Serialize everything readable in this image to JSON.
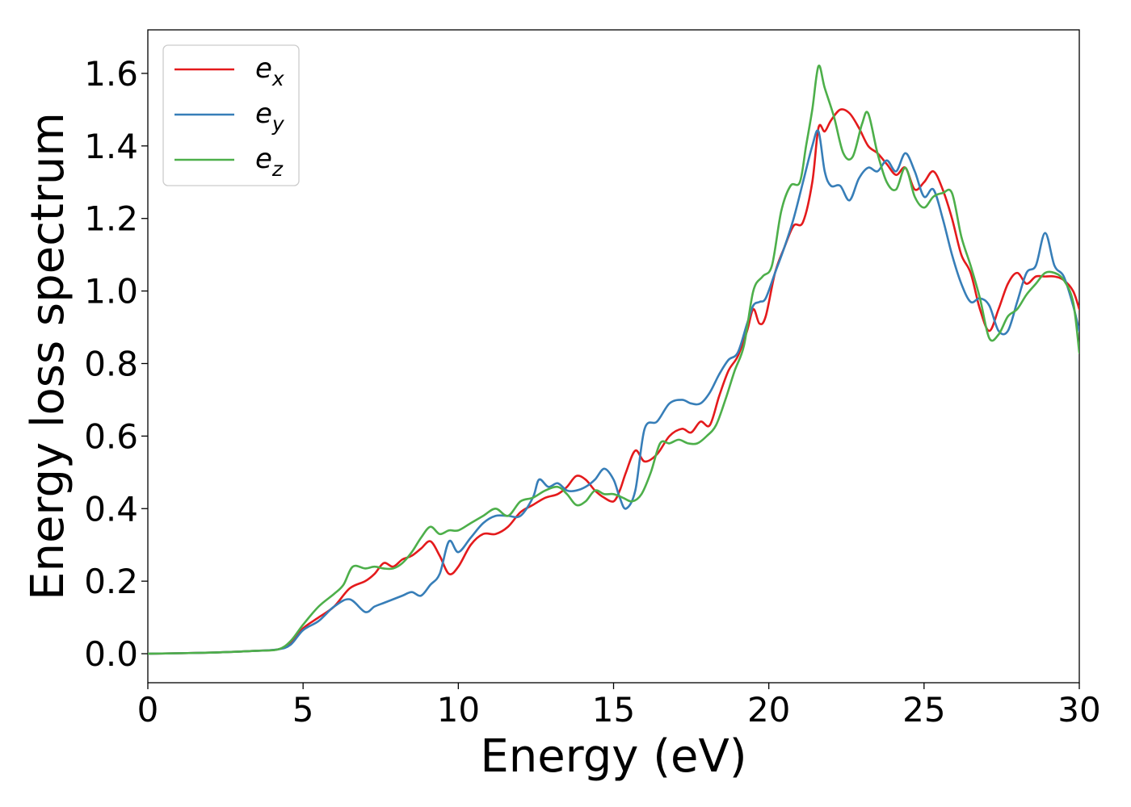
{
  "chart_data": {
    "type": "line",
    "xlabel": "Energy (eV)",
    "ylabel": "Energy loss spectrum",
    "xlim": [
      0,
      30
    ],
    "ylim": [
      -0.08,
      1.72
    ],
    "xticks": [
      0,
      5,
      10,
      15,
      20,
      25,
      30
    ],
    "yticks": [
      0.0,
      0.2,
      0.4,
      0.6,
      0.8,
      1.0,
      1.2,
      1.4,
      1.6
    ],
    "xtick_labels": [
      "0",
      "5",
      "10",
      "15",
      "20",
      "25",
      "30"
    ],
    "ytick_labels": [
      "0.0",
      "0.2",
      "0.4",
      "0.6",
      "0.8",
      "1.0",
      "1.2",
      "1.4",
      "1.6"
    ],
    "grid": false,
    "legend_position": "top-left",
    "series": [
      {
        "name": "e_x",
        "label_base": "e",
        "label_sub": "x",
        "color": "#e41a1c",
        "x": [
          0,
          2,
          3.5,
          4.2,
          4.6,
          5,
          5.5,
          6,
          6.5,
          7,
          7.3,
          7.6,
          7.9,
          8.2,
          8.5,
          8.8,
          9.1,
          9.4,
          9.7,
          10,
          10.4,
          10.8,
          11.2,
          11.6,
          12,
          12.4,
          12.8,
          13.2,
          13.5,
          13.8,
          14.1,
          14.4,
          14.7,
          15,
          15.2,
          15.4,
          15.7,
          16,
          16.4,
          16.8,
          17.2,
          17.5,
          17.8,
          18.1,
          18.4,
          18.7,
          19,
          19.3,
          19.5,
          19.7,
          19.9,
          20.2,
          20.5,
          20.8,
          21.1,
          21.4,
          21.6,
          21.8,
          22,
          22.3,
          22.6,
          22.9,
          23.2,
          23.5,
          23.8,
          24.1,
          24.4,
          24.7,
          25,
          25.3,
          25.6,
          25.9,
          26.2,
          26.5,
          26.8,
          27.1,
          27.4,
          27.7,
          28,
          28.3,
          28.6,
          28.9,
          29.2,
          29.5,
          29.8,
          30
        ],
        "y": [
          0.0,
          0.003,
          0.008,
          0.012,
          0.03,
          0.07,
          0.1,
          0.13,
          0.18,
          0.2,
          0.22,
          0.25,
          0.24,
          0.26,
          0.27,
          0.29,
          0.31,
          0.27,
          0.22,
          0.24,
          0.3,
          0.33,
          0.33,
          0.35,
          0.39,
          0.41,
          0.43,
          0.44,
          0.46,
          0.49,
          0.48,
          0.45,
          0.43,
          0.42,
          0.45,
          0.5,
          0.56,
          0.53,
          0.55,
          0.6,
          0.62,
          0.61,
          0.64,
          0.63,
          0.71,
          0.78,
          0.82,
          0.89,
          0.95,
          0.91,
          0.93,
          1.05,
          1.12,
          1.18,
          1.19,
          1.3,
          1.45,
          1.44,
          1.47,
          1.5,
          1.49,
          1.45,
          1.4,
          1.38,
          1.35,
          1.32,
          1.34,
          1.28,
          1.3,
          1.33,
          1.28,
          1.2,
          1.1,
          1.05,
          0.95,
          0.89,
          0.95,
          1.02,
          1.05,
          1.02,
          1.04,
          1.04,
          1.04,
          1.03,
          1.0,
          0.95
        ]
      },
      {
        "name": "e_y",
        "label_base": "e",
        "label_sub": "y",
        "color": "#377eb8",
        "x": [
          0,
          2,
          3.5,
          4.2,
          4.6,
          5,
          5.5,
          6,
          6.5,
          7,
          7.3,
          7.6,
          7.9,
          8.2,
          8.5,
          8.8,
          9.1,
          9.4,
          9.7,
          10,
          10.4,
          10.8,
          11.2,
          11.6,
          12,
          12.4,
          12.6,
          12.9,
          13.2,
          13.5,
          13.8,
          14.1,
          14.4,
          14.7,
          15,
          15.2,
          15.4,
          15.7,
          16,
          16.4,
          16.8,
          17.2,
          17.5,
          17.8,
          18.1,
          18.4,
          18.7,
          19,
          19.3,
          19.5,
          19.7,
          19.9,
          20.2,
          20.5,
          20.8,
          21.1,
          21.4,
          21.6,
          21.8,
          22,
          22.3,
          22.6,
          22.9,
          23.2,
          23.5,
          23.8,
          24.1,
          24.4,
          24.7,
          25,
          25.3,
          25.6,
          25.9,
          26.2,
          26.5,
          26.8,
          27.1,
          27.4,
          27.7,
          28,
          28.3,
          28.6,
          28.9,
          29.2,
          29.5,
          29.8,
          30
        ],
        "y": [
          0.0,
          0.003,
          0.008,
          0.012,
          0.025,
          0.065,
          0.09,
          0.13,
          0.15,
          0.115,
          0.13,
          0.14,
          0.15,
          0.16,
          0.17,
          0.16,
          0.19,
          0.22,
          0.31,
          0.28,
          0.32,
          0.36,
          0.38,
          0.38,
          0.38,
          0.43,
          0.48,
          0.46,
          0.47,
          0.45,
          0.45,
          0.46,
          0.48,
          0.51,
          0.48,
          0.43,
          0.4,
          0.45,
          0.62,
          0.64,
          0.69,
          0.7,
          0.69,
          0.69,
          0.72,
          0.77,
          0.81,
          0.83,
          0.91,
          0.96,
          0.97,
          0.98,
          1.05,
          1.12,
          1.2,
          1.3,
          1.4,
          1.44,
          1.33,
          1.29,
          1.29,
          1.25,
          1.31,
          1.34,
          1.33,
          1.36,
          1.33,
          1.38,
          1.33,
          1.26,
          1.28,
          1.2,
          1.1,
          1.02,
          0.97,
          0.98,
          0.96,
          0.89,
          0.89,
          0.97,
          1.05,
          1.07,
          1.16,
          1.07,
          1.04,
          0.96,
          0.89
        ]
      },
      {
        "name": "e_z",
        "label_base": "e",
        "label_sub": "z",
        "color": "#4daf4a",
        "x": [
          0,
          2,
          3.5,
          4.2,
          4.6,
          5,
          5.5,
          6,
          6.3,
          6.6,
          7,
          7.3,
          7.6,
          7.9,
          8.2,
          8.5,
          8.8,
          9.1,
          9.4,
          9.7,
          10,
          10.4,
          10.8,
          11.2,
          11.6,
          12,
          12.4,
          12.8,
          13.2,
          13.5,
          13.8,
          14.1,
          14.4,
          14.7,
          15,
          15.3,
          15.6,
          15.9,
          16.2,
          16.5,
          16.8,
          17.1,
          17.4,
          17.7,
          18,
          18.3,
          18.6,
          18.9,
          19.2,
          19.5,
          19.8,
          20.1,
          20.4,
          20.7,
          21,
          21.2,
          21.4,
          21.6,
          21.8,
          22.1,
          22.4,
          22.7,
          23,
          23.2,
          23.5,
          23.8,
          24.1,
          24.4,
          24.7,
          25,
          25.3,
          25.6,
          25.9,
          26.2,
          26.5,
          26.8,
          27.1,
          27.4,
          27.7,
          28,
          28.3,
          28.6,
          28.9,
          29.2,
          29.5,
          29.8,
          30
        ],
        "y": [
          0.0,
          0.003,
          0.008,
          0.012,
          0.035,
          0.08,
          0.13,
          0.165,
          0.19,
          0.24,
          0.235,
          0.24,
          0.235,
          0.235,
          0.25,
          0.28,
          0.32,
          0.35,
          0.33,
          0.34,
          0.34,
          0.36,
          0.38,
          0.4,
          0.38,
          0.42,
          0.43,
          0.45,
          0.46,
          0.44,
          0.41,
          0.42,
          0.45,
          0.44,
          0.44,
          0.43,
          0.42,
          0.44,
          0.5,
          0.58,
          0.58,
          0.59,
          0.58,
          0.58,
          0.6,
          0.63,
          0.7,
          0.78,
          0.85,
          1.0,
          1.04,
          1.07,
          1.22,
          1.29,
          1.3,
          1.4,
          1.5,
          1.62,
          1.56,
          1.48,
          1.38,
          1.37,
          1.46,
          1.49,
          1.38,
          1.3,
          1.28,
          1.34,
          1.26,
          1.23,
          1.26,
          1.27,
          1.27,
          1.15,
          1.07,
          0.98,
          0.87,
          0.88,
          0.93,
          0.95,
          0.99,
          1.02,
          1.05,
          1.05,
          1.03,
          0.97,
          0.83
        ]
      }
    ]
  }
}
